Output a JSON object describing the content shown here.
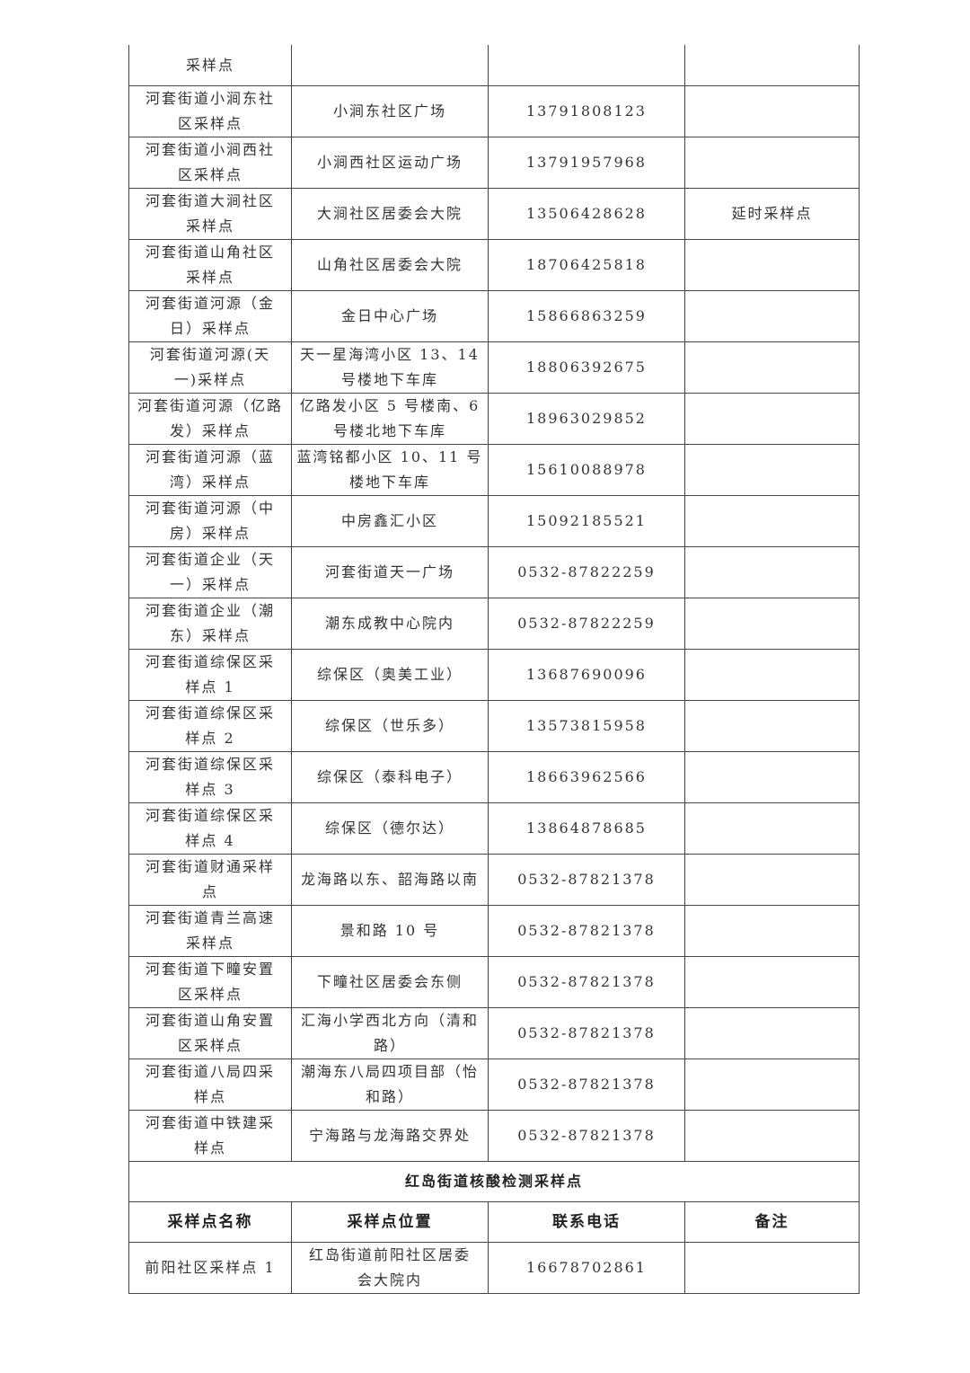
{
  "rows_top": [
    [
      "采样点",
      "",
      "",
      ""
    ],
    [
      "河套街道小涧东社\n区采样点",
      "小涧东社区广场",
      "13791808123",
      ""
    ],
    [
      "河套街道小涧西社\n区采样点",
      "小涧西社区运动广场",
      "13791957968",
      ""
    ],
    [
      "河套街道大涧社区\n采样点",
      "大涧社区居委会大院",
      "13506428628",
      "延时采样点"
    ],
    [
      "河套街道山角社区\n采样点",
      "山角社区居委会大院",
      "18706425818",
      ""
    ],
    [
      "河套街道河源（金\n日）采样点",
      "金日中心广场",
      "15866863259",
      ""
    ],
    [
      "河套街道河源(天\n一)采样点",
      "天一星海湾小区 13、14\n号楼地下车库",
      "18806392675",
      ""
    ],
    [
      "河套街道河源（亿路\n发）采样点",
      "亿路发小区 5 号楼南、6\n号楼北地下车库",
      "18963029852",
      ""
    ],
    [
      "河套街道河源（蓝\n湾）采样点",
      "蓝湾铭都小区 10、11 号\n楼地下车库",
      "15610088978",
      ""
    ],
    [
      "河套街道河源（中\n房）采样点",
      "中房鑫汇小区",
      "15092185521",
      ""
    ],
    [
      "河套街道企业（天\n一）采样点",
      "河套街道天一广场",
      "0532-87822259",
      ""
    ],
    [
      "河套街道企业（潮\n东）采样点",
      "潮东成教中心院内",
      "0532-87822259",
      ""
    ],
    [
      "河套街道综保区采\n样点 1",
      "综保区（奥美工业）",
      "13687690096",
      ""
    ],
    [
      "河套街道综保区采\n样点 2",
      "综保区（世乐多）",
      "13573815958",
      ""
    ],
    [
      "河套街道综保区采\n样点 3",
      "综保区（泰科电子）",
      "18663962566",
      ""
    ],
    [
      "河套街道综保区采\n样点 4",
      "综保区（德尔达）",
      "13864878685",
      ""
    ],
    [
      "河套街道财通采样\n点",
      "龙海路以东、韶海路以南",
      "0532-87821378",
      ""
    ],
    [
      "河套街道青兰高速\n采样点",
      "景和路 10 号",
      "0532-87821378",
      ""
    ],
    [
      "河套街道下疃安置\n区采样点",
      "下疃社区居委会东侧",
      "0532-87821378",
      ""
    ],
    [
      "河套街道山角安置\n区采样点",
      "汇海小学西北方向（清和\n路）",
      "0532-87821378",
      ""
    ],
    [
      "河套街道八局四采\n样点",
      "潮海东八局四项目部（怡\n和路）",
      "0532-87821378",
      ""
    ],
    [
      "河套街道中铁建采\n样点",
      "宁海路与龙海路交界处",
      "0532-87821378",
      ""
    ]
  ],
  "section_title": "红岛街道核酸检测采样点",
  "headers": [
    "采样点名称",
    "采样点位置",
    "联系电话",
    "备注"
  ],
  "rows_bottom": [
    [
      "前阳社区采样点 1",
      "红岛街道前阳社区居委\n会大院内",
      "16678702861",
      ""
    ]
  ]
}
